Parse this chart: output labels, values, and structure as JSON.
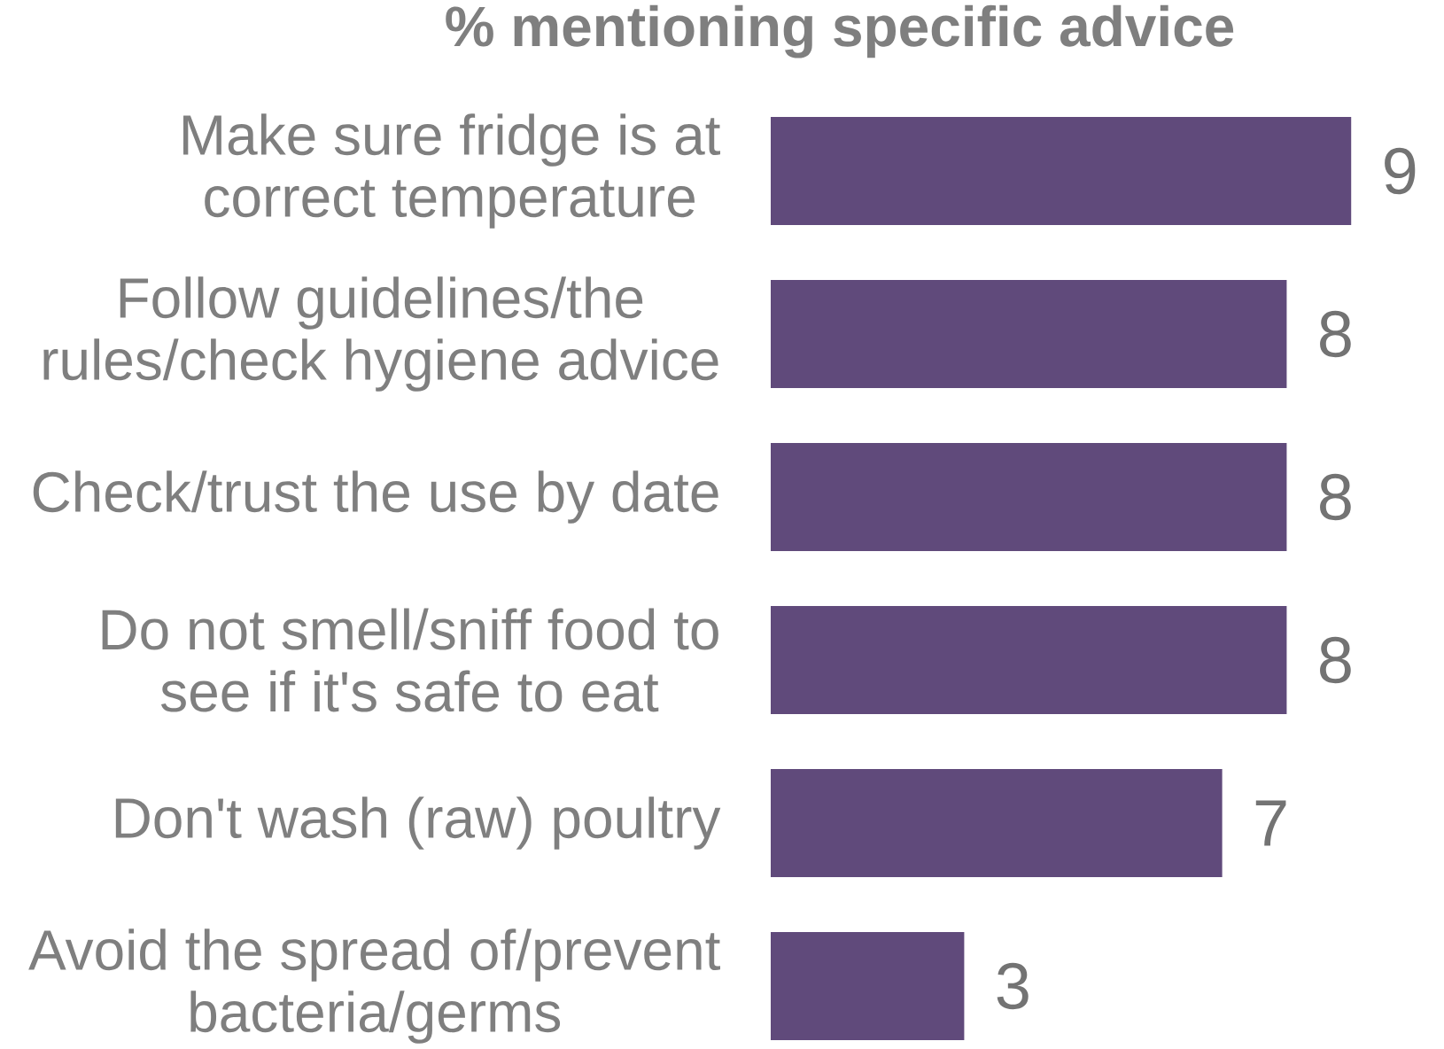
{
  "chart_data": {
    "type": "bar",
    "orientation": "horizontal",
    "title": "% mentioning specific advice",
    "categories": [
      "Make sure fridge is at correct temperature",
      "Follow guidelines/the rules/check hygiene advice",
      "Check/trust the use by date",
      "Do not smell/sniff food to see if it's safe to eat",
      "Don't wash (raw) poultry",
      "Avoid the spread of/prevent bacteria/germs"
    ],
    "values": [
      9,
      8,
      8,
      8,
      7,
      3
    ],
    "color": "#604a7b",
    "data_labels": true,
    "tick_labels": "y"
  }
}
